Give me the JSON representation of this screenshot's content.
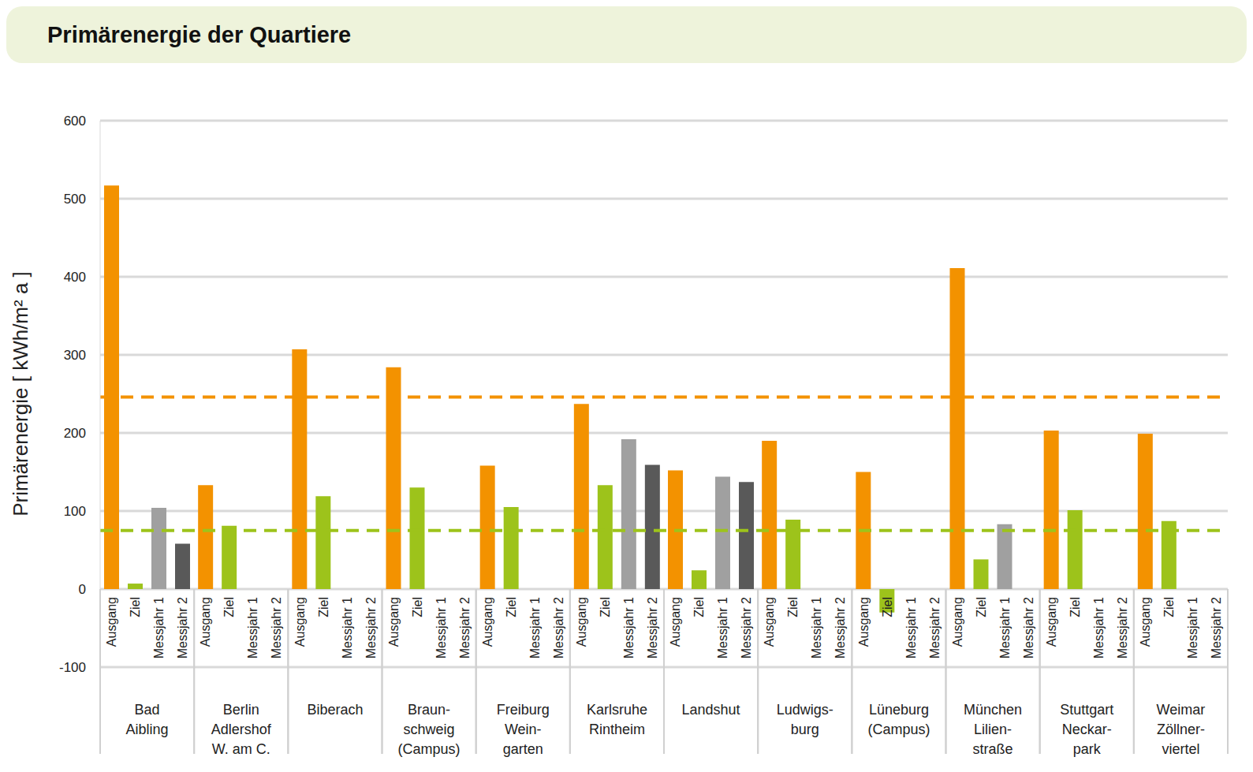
{
  "chart_data": {
    "type": "bar",
    "title": "Primärenergie der Quartiere",
    "y_label": "Primärenergie [ kWh/m² a ]",
    "categories": [
      "Bad\nAibling",
      "Berlin\nAdlershof\nW. am C.",
      "Biberach",
      "Braun-\nschweig\n(Campus)",
      "Freiburg\nWein-\ngarten",
      "Karlsruhe\nRintheim",
      "Landshut",
      "Ludwigs-\nburg",
      "Lüneburg\n(Campus)",
      "München\nLilien-\nstraße",
      "Stuttgart\nNeckar-\npark",
      "Weimar\nZöllner-\nviertel"
    ],
    "series": [
      {
        "name": "Ausgang",
        "color": "#f39200",
        "values": [
          517,
          133,
          307,
          284,
          158,
          237,
          152,
          190,
          150,
          411,
          203,
          199
        ]
      },
      {
        "name": "Ziel",
        "color": "#9dc31b",
        "values": [
          7,
          81,
          119,
          130,
          105,
          133,
          24,
          89,
          -30,
          38,
          101,
          87
        ]
      },
      {
        "name": "Messjahr 1",
        "color": "#a0a0a0",
        "values": [
          104,
          null,
          null,
          null,
          null,
          192,
          144,
          null,
          null,
          83,
          null,
          null
        ]
      },
      {
        "name": "Messjahr 2",
        "color": "#595959",
        "values": [
          58,
          null,
          null,
          null,
          null,
          159,
          137,
          null,
          null,
          null,
          null,
          null
        ]
      }
    ],
    "ylim": [
      -100,
      600
    ],
    "yticks": [
      -100,
      0,
      100,
      200,
      300,
      400,
      500,
      600
    ],
    "grid": true,
    "reference_lines": [
      {
        "value": 246,
        "color": "#f39200",
        "line_style": "dashed"
      },
      {
        "value": 75,
        "color": "#9dc31b",
        "line_style": "dashed"
      }
    ]
  }
}
